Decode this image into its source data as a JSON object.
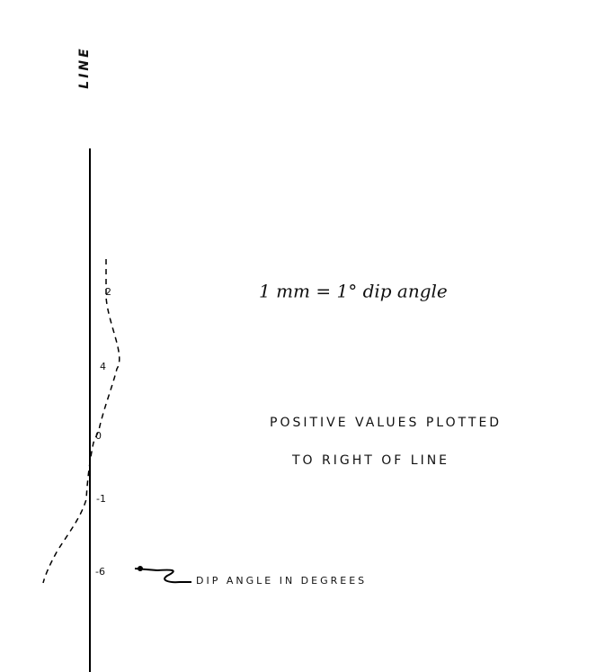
{
  "axis_label": "LINE",
  "scale_note": "1 mm = 1° dip angle",
  "convention": [
    "POSITIVE VALUES PLOTTED",
    "TO RIGHT OF LINE"
  ],
  "profile_labels": [
    "2",
    "4",
    "0",
    "-1",
    "-6"
  ],
  "legend": "DIP ANGLE IN DEGREES"
}
